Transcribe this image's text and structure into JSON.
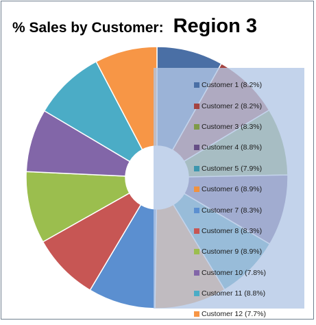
{
  "title": {
    "main": "% Sales by Customer:",
    "region": "Region 3"
  },
  "chart_data": {
    "type": "pie",
    "variant": "doughnut",
    "title": "% Sales by Customer: Region 3",
    "legend_position": "right",
    "categories": [
      "Customer 1",
      "Customer 2",
      "Customer 3",
      "Customer 4",
      "Customer 5",
      "Customer 6",
      "Customer 7",
      "Customer 8",
      "Customer 9",
      "Customer 10",
      "Customer 11",
      "Customer 12"
    ],
    "values": [
      8.2,
      8.2,
      8.3,
      8.8,
      7.9,
      8.9,
      8.3,
      8.3,
      8.9,
      7.8,
      8.8,
      7.7
    ],
    "legend_labels": [
      "Customer 1 (8.2%)",
      "Customer 2 (8.2%)",
      "Customer 3 (8.3%)",
      "Customer 4 (8.8%)",
      "Customer 5 (7.9%)",
      "Customer 6 (8.9%)",
      "Customer 7 (8.3%)",
      "Customer 8 (8.3%)",
      "Customer 9 (8.9%)",
      "Customer 10 (7.8%)",
      "Customer 11 (8.8%)",
      "Customer 12 (7.7%)"
    ],
    "colors": [
      "#4a6fa5",
      "#a44441",
      "#7f9a48",
      "#664f86",
      "#3c96ae",
      "#f0913e",
      "#5b8fd0",
      "#c75654",
      "#9bbe4e",
      "#8266a8",
      "#4bacc6",
      "#f79646"
    ]
  }
}
